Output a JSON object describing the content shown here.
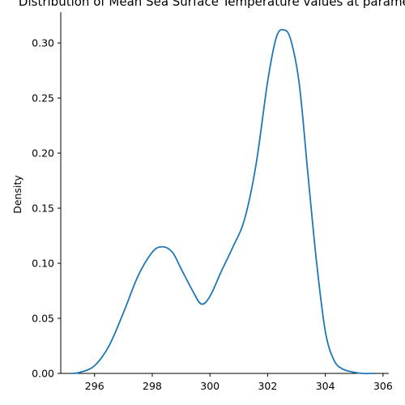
{
  "chart_data": {
    "type": "line",
    "title": "Distribution of Mean Sea Surface Temperature values at parameter",
    "xlabel": "",
    "ylabel": "Density",
    "xlim": [
      294.8,
      306.2
    ],
    "ylim": [
      0,
      0.328
    ],
    "xticks": [
      296,
      298,
      300,
      302,
      304,
      306
    ],
    "yticks": [
      0.0,
      0.05,
      0.1,
      0.15,
      0.2,
      0.25,
      0.3
    ],
    "grid": false,
    "legend": "none",
    "series": [
      {
        "color": "#1f77b4",
        "x": [
          295.2,
          295.5,
          296.0,
          296.5,
          297.0,
          297.5,
          298.0,
          298.35,
          298.7,
          299.0,
          299.4,
          299.7,
          300.0,
          300.4,
          300.8,
          301.2,
          301.6,
          302.0,
          302.3,
          302.55,
          302.8,
          303.1,
          303.4,
          303.7,
          304.0,
          304.3,
          304.6,
          305.0,
          305.3,
          305.7
        ],
        "y": [
          0.0,
          0.001,
          0.007,
          0.025,
          0.055,
          0.088,
          0.11,
          0.115,
          0.11,
          0.095,
          0.075,
          0.063,
          0.07,
          0.093,
          0.115,
          0.14,
          0.19,
          0.265,
          0.305,
          0.312,
          0.303,
          0.262,
          0.18,
          0.1,
          0.038,
          0.012,
          0.004,
          0.001,
          0.0,
          0.0
        ]
      }
    ]
  }
}
